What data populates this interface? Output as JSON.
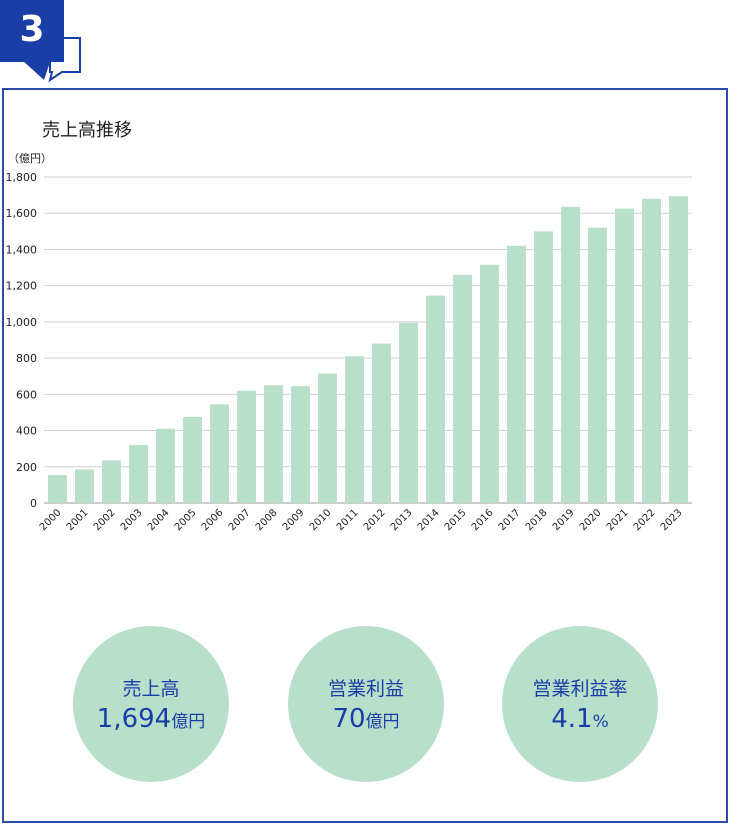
{
  "badge": {
    "number": "3"
  },
  "chart_data": {
    "type": "bar",
    "title": "売上高推移",
    "unit": "（億円）",
    "categories": [
      "2000",
      "2001",
      "2002",
      "2003",
      "2004",
      "2005",
      "2006",
      "2007",
      "2008",
      "2009",
      "2010",
      "2011",
      "2012",
      "2013",
      "2014",
      "2015",
      "2016",
      "2017",
      "2018",
      "2019",
      "2020",
      "2021",
      "2022",
      "2023"
    ],
    "values": [
      155,
      185,
      235,
      320,
      410,
      475,
      545,
      620,
      650,
      645,
      715,
      810,
      880,
      995,
      1145,
      1260,
      1315,
      1420,
      1500,
      1635,
      1520,
      1625,
      1680,
      1694
    ],
    "ylim": [
      0,
      1800
    ],
    "yticks": [
      "0",
      "200",
      "400",
      "600",
      "800",
      "1,000",
      "1,200",
      "1,400",
      "1,600",
      "1,800"
    ],
    "grid": true,
    "bar_color": "#b8dfca",
    "grid_color": "#d0d0d0"
  },
  "summary": [
    {
      "label": "売上高",
      "value": "1,694",
      "unit": "億円"
    },
    {
      "label": "営業利益",
      "value": "70",
      "unit": "億円"
    },
    {
      "label": "営業利益率",
      "value": "4.1",
      "unit": "%"
    }
  ],
  "colors": {
    "accent": "#1a3ea8",
    "circle": "#b8dfca"
  }
}
